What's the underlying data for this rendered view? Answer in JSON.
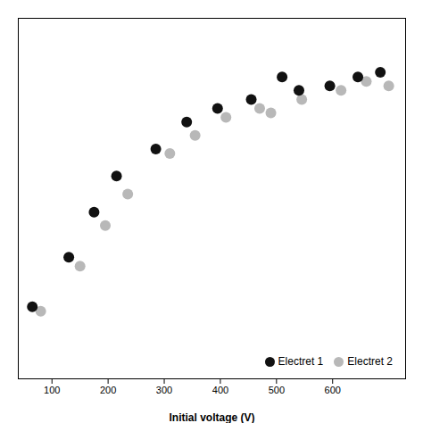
{
  "chart_data": {
    "type": "scatter",
    "xlabel": "Initial voltage (V)",
    "xlim": [
      40,
      730
    ],
    "xticks": [
      100,
      200,
      300,
      400,
      500,
      600
    ],
    "ylim": [
      0.5,
      8.5
    ],
    "tick_labels": "x",
    "legend": "lower right",
    "series": [
      {
        "name": "Electret 1",
        "color": "#111111",
        "x": [
          65,
          130,
          175,
          215,
          285,
          340,
          395,
          455,
          510,
          540,
          595,
          645,
          685
        ],
        "values": [
          2.1,
          3.2,
          4.2,
          5.0,
          5.6,
          6.2,
          6.5,
          6.7,
          7.2,
          6.9,
          7.0,
          7.2,
          7.3
        ]
      },
      {
        "name": "Electret 2",
        "color": "#b8b8b8",
        "x": [
          80,
          150,
          195,
          235,
          310,
          355,
          410,
          470,
          490,
          545,
          615,
          660,
          700
        ],
        "values": [
          2.0,
          3.0,
          3.9,
          4.6,
          5.5,
          5.9,
          6.3,
          6.5,
          6.4,
          6.7,
          6.9,
          7.1,
          7.0
        ]
      }
    ]
  }
}
